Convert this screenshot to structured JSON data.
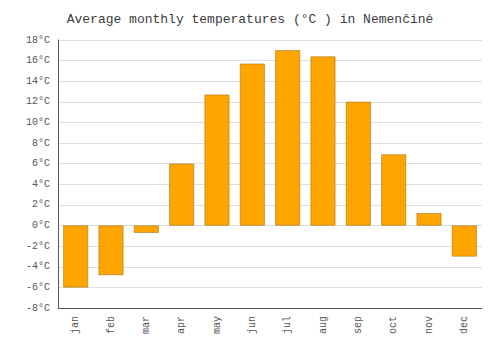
{
  "chart_data": {
    "type": "bar",
    "title": "Average monthly temperatures (°C ) in Nemenčinė",
    "categories": [
      "jan",
      "feb",
      "mar",
      "apr",
      "may",
      "jun",
      "jul",
      "aug",
      "sep",
      "oct",
      "nov",
      "dec"
    ],
    "values": [
      -6.0,
      -4.8,
      -0.7,
      6.0,
      12.7,
      15.7,
      17.0,
      16.4,
      12.0,
      6.9,
      1.2,
      -3.0
    ],
    "color": "#FFA500",
    "ylim": [
      -8,
      18
    ],
    "yticks": [
      {
        "value": -8,
        "label": "-8°C"
      },
      {
        "value": -6,
        "label": "-6°C"
      },
      {
        "value": -4,
        "label": "-4°C"
      },
      {
        "value": -2,
        "label": "-2°C"
      },
      {
        "value": 0,
        "label": "0°C"
      },
      {
        "value": 2,
        "label": "2°C"
      },
      {
        "value": 4,
        "label": "4°C"
      },
      {
        "value": 6,
        "label": "6°C"
      },
      {
        "value": 8,
        "label": "8°C"
      },
      {
        "value": 10,
        "label": "10°C"
      },
      {
        "value": 12,
        "label": "12°C"
      },
      {
        "value": 14,
        "label": "14°C"
      },
      {
        "value": 16,
        "label": "16°C"
      },
      {
        "value": 18,
        "label": "18°C"
      }
    ],
    "grid": true
  }
}
